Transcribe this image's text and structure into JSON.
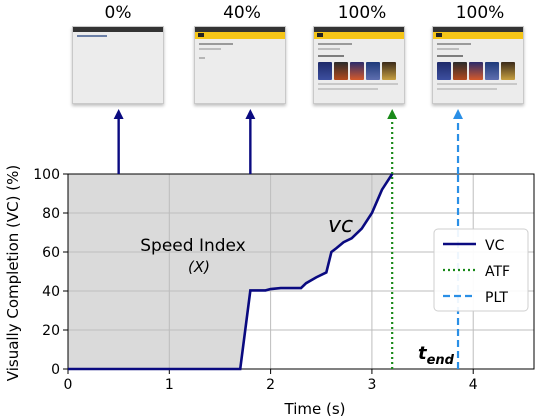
{
  "thumbnails": [
    {
      "label": "0%",
      "state": "blank"
    },
    {
      "label": "40%",
      "state": "partial"
    },
    {
      "label": "100%",
      "state": "full"
    },
    {
      "label": "100%",
      "state": "full"
    }
  ],
  "annotations": {
    "speed_index": "Speed Index",
    "speed_index_symbol": "(X)",
    "vc_curve": "vc",
    "t_end": "t",
    "t_end_sub": "end"
  },
  "colors": {
    "vc": "#0a0a80",
    "atf": "#1a8a1a",
    "plt": "#2a8fe6",
    "fill": "#dadada",
    "arrow_dark": "#0a0a80"
  },
  "chart_data": {
    "type": "line",
    "xlabel": "Time (s)",
    "ylabel": "Visually Completion (VC) (%)",
    "xlim": [
      0,
      4.6
    ],
    "ylim": [
      0,
      100
    ],
    "xticks": [
      "0",
      "1",
      "2",
      "3",
      "4"
    ],
    "yticks": [
      "0",
      "20",
      "40",
      "60",
      "80",
      "100"
    ],
    "grid": true,
    "legend_position": "right",
    "series": [
      {
        "name": "VC",
        "style": "solid",
        "x": [
          0,
          1.7,
          1.8,
          1.95,
          2.0,
          2.1,
          2.3,
          2.35,
          2.45,
          2.55,
          2.6,
          2.65,
          2.72,
          2.8,
          2.9,
          3.0,
          3.1,
          3.2
        ],
        "y": [
          0,
          0,
          40.3,
          40.3,
          41,
          41.5,
          41.5,
          44,
          47,
          49.5,
          60,
          62,
          65,
          67,
          72,
          80,
          92,
          100
        ]
      },
      {
        "name": "ATF",
        "style": "dotted",
        "x_value": 3.2
      },
      {
        "name": "PLT",
        "style": "dashed",
        "x_value": 3.85
      }
    ],
    "thumbnail_arrow_times": [
      0.5,
      1.8,
      3.2,
      3.85
    ]
  }
}
